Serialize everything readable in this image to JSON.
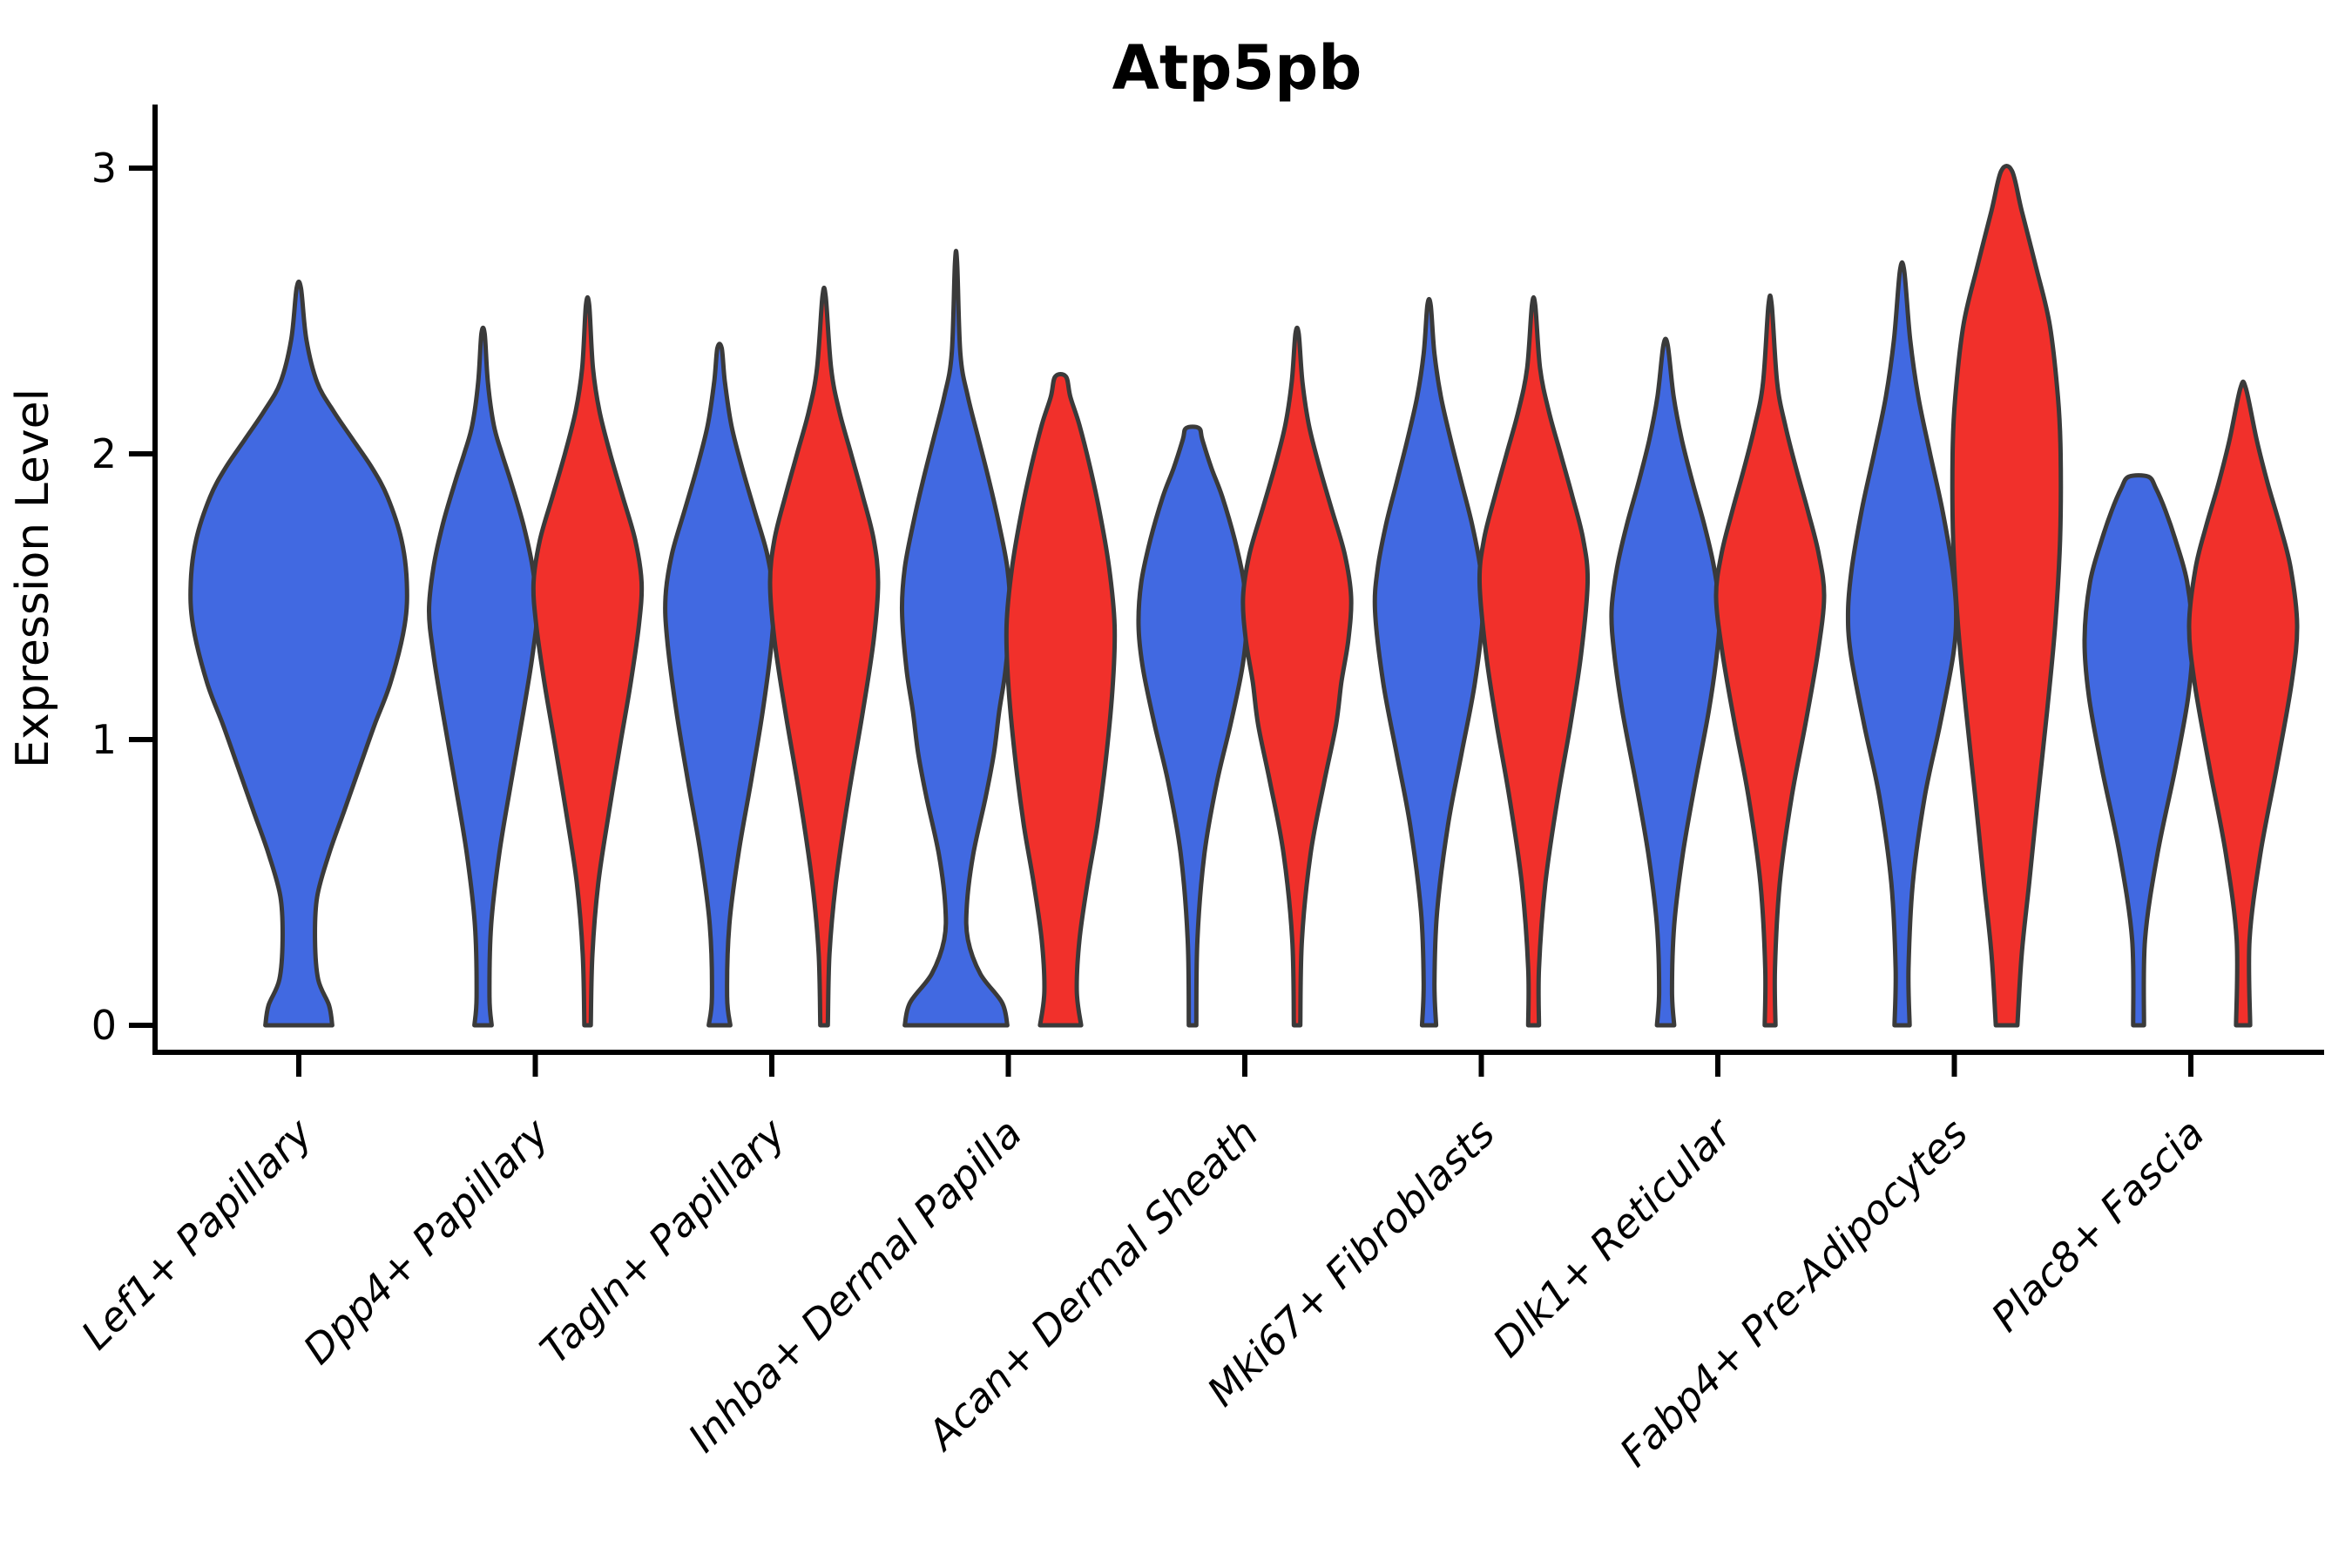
{
  "title": "Atp5pb",
  "ylabel": "Expression Level",
  "colors": {
    "blue": "#4169E1",
    "red": "#F1302B",
    "outline": "#3A3A3A",
    "axis": "#000000"
  },
  "chart_data": {
    "type": "violin",
    "split": true,
    "title": "Atp5pb",
    "xlabel": "",
    "ylabel": "Expression Level",
    "ylim": [
      0,
      3
    ],
    "yticks": [
      0,
      1,
      2,
      3
    ],
    "grid": false,
    "legend": "none",
    "categories": [
      "Lef1+ Papillary",
      "Dpp4+ Papillary",
      "Tagln+ Papillary",
      "Inhba+ Dermal Papilla",
      "Acan+ Dermal Sheath",
      "Mki67+ Fibroblasts",
      "Dlk1+ Reticular",
      "Fabp4+ Pre-Adipocytes",
      "Plac8+ Fascia"
    ],
    "groups": [
      "blue",
      "red"
    ],
    "violins": [
      {
        "category_index": 0,
        "group": "blue",
        "side": "full",
        "max_expression": 2.58,
        "profile": [
          [
            0,
            0.31
          ],
          [
            0.07,
            0.28
          ],
          [
            0.16,
            0.18
          ],
          [
            0.3,
            0.15
          ],
          [
            0.45,
            0.17
          ],
          [
            0.6,
            0.28
          ],
          [
            0.75,
            0.42
          ],
          [
            0.9,
            0.56
          ],
          [
            1.05,
            0.7
          ],
          [
            1.2,
            0.85
          ],
          [
            1.4,
            0.98
          ],
          [
            1.55,
            1.0
          ],
          [
            1.7,
            0.95
          ],
          [
            1.85,
            0.82
          ],
          [
            1.95,
            0.68
          ],
          [
            2.05,
            0.5
          ],
          [
            2.15,
            0.32
          ],
          [
            2.25,
            0.17
          ],
          [
            2.4,
            0.07
          ],
          [
            2.58,
            0.02
          ]
        ]
      },
      {
        "category_index": 1,
        "group": "blue",
        "side": "left",
        "max_expression": 2.42,
        "profile": [
          [
            0,
            0.16
          ],
          [
            0.1,
            0.12
          ],
          [
            0.35,
            0.15
          ],
          [
            0.6,
            0.3
          ],
          [
            0.85,
            0.52
          ],
          [
            1.1,
            0.75
          ],
          [
            1.3,
            0.92
          ],
          [
            1.45,
            1.0
          ],
          [
            1.6,
            0.92
          ],
          [
            1.75,
            0.75
          ],
          [
            1.9,
            0.52
          ],
          [
            2.0,
            0.35
          ],
          [
            2.1,
            0.2
          ],
          [
            2.25,
            0.09
          ],
          [
            2.42,
            0.03
          ]
        ]
      },
      {
        "category_index": 1,
        "group": "red",
        "side": "right",
        "max_expression": 2.52,
        "profile": [
          [
            0,
            0.06
          ],
          [
            0.25,
            0.09
          ],
          [
            0.5,
            0.2
          ],
          [
            0.75,
            0.4
          ],
          [
            1.0,
            0.62
          ],
          [
            1.2,
            0.8
          ],
          [
            1.4,
            0.95
          ],
          [
            1.55,
            1.0
          ],
          [
            1.7,
            0.88
          ],
          [
            1.85,
            0.65
          ],
          [
            2.0,
            0.42
          ],
          [
            2.15,
            0.22
          ],
          [
            2.3,
            0.1
          ],
          [
            2.52,
            0.03
          ]
        ]
      },
      {
        "category_index": 2,
        "group": "blue",
        "side": "left",
        "max_expression": 2.37,
        "profile": [
          [
            0,
            0.2
          ],
          [
            0.1,
            0.14
          ],
          [
            0.35,
            0.18
          ],
          [
            0.6,
            0.35
          ],
          [
            0.85,
            0.58
          ],
          [
            1.1,
            0.8
          ],
          [
            1.35,
            0.97
          ],
          [
            1.5,
            1.0
          ],
          [
            1.65,
            0.88
          ],
          [
            1.8,
            0.65
          ],
          [
            1.95,
            0.42
          ],
          [
            2.1,
            0.22
          ],
          [
            2.25,
            0.1
          ],
          [
            2.37,
            0.04
          ]
        ]
      },
      {
        "category_index": 2,
        "group": "red",
        "side": "right",
        "max_expression": 2.55,
        "profile": [
          [
            0,
            0.07
          ],
          [
            0.25,
            0.1
          ],
          [
            0.5,
            0.22
          ],
          [
            0.8,
            0.45
          ],
          [
            1.1,
            0.72
          ],
          [
            1.35,
            0.92
          ],
          [
            1.55,
            1.0
          ],
          [
            1.7,
            0.92
          ],
          [
            1.85,
            0.72
          ],
          [
            2.0,
            0.5
          ],
          [
            2.15,
            0.28
          ],
          [
            2.3,
            0.13
          ],
          [
            2.55,
            0.03
          ]
        ]
      },
      {
        "category_index": 3,
        "group": "blue",
        "side": "left",
        "max_expression": 2.67,
        "profile": [
          [
            0,
            0.95
          ],
          [
            0.08,
            0.85
          ],
          [
            0.18,
            0.45
          ],
          [
            0.3,
            0.22
          ],
          [
            0.42,
            0.2
          ],
          [
            0.6,
            0.32
          ],
          [
            0.8,
            0.55
          ],
          [
            0.95,
            0.7
          ],
          [
            1.1,
            0.8
          ],
          [
            1.25,
            0.92
          ],
          [
            1.45,
            1.0
          ],
          [
            1.6,
            0.95
          ],
          [
            1.75,
            0.8
          ],
          [
            1.9,
            0.62
          ],
          [
            2.05,
            0.42
          ],
          [
            2.2,
            0.22
          ],
          [
            2.35,
            0.08
          ],
          [
            2.67,
            0.02
          ]
        ]
      },
      {
        "category_index": 3,
        "group": "red",
        "side": "right",
        "max_expression": 2.27,
        "profile": [
          [
            0,
            0.38
          ],
          [
            0.12,
            0.3
          ],
          [
            0.3,
            0.35
          ],
          [
            0.5,
            0.5
          ],
          [
            0.7,
            0.68
          ],
          [
            0.95,
            0.85
          ],
          [
            1.2,
            0.97
          ],
          [
            1.4,
            1.0
          ],
          [
            1.6,
            0.9
          ],
          [
            1.8,
            0.72
          ],
          [
            1.95,
            0.55
          ],
          [
            2.1,
            0.35
          ],
          [
            2.2,
            0.18
          ],
          [
            2.27,
            0.1
          ]
        ]
      },
      {
        "category_index": 4,
        "group": "blue",
        "side": "left",
        "max_expression": 2.09,
        "profile": [
          [
            0,
            0.07
          ],
          [
            0.3,
            0.09
          ],
          [
            0.6,
            0.22
          ],
          [
            0.85,
            0.45
          ],
          [
            1.05,
            0.7
          ],
          [
            1.25,
            0.92
          ],
          [
            1.4,
            1.0
          ],
          [
            1.55,
            0.95
          ],
          [
            1.7,
            0.78
          ],
          [
            1.85,
            0.55
          ],
          [
            1.95,
            0.35
          ],
          [
            2.05,
            0.18
          ],
          [
            2.09,
            0.12
          ]
        ]
      },
      {
        "category_index": 4,
        "group": "red",
        "side": "right",
        "max_expression": 2.42,
        "profile": [
          [
            0,
            0.06
          ],
          [
            0.3,
            0.09
          ],
          [
            0.6,
            0.25
          ],
          [
            0.85,
            0.5
          ],
          [
            1.05,
            0.72
          ],
          [
            1.2,
            0.82
          ],
          [
            1.35,
            0.95
          ],
          [
            1.5,
            1.0
          ],
          [
            1.65,
            0.88
          ],
          [
            1.8,
            0.65
          ],
          [
            1.95,
            0.42
          ],
          [
            2.1,
            0.22
          ],
          [
            2.25,
            0.1
          ],
          [
            2.42,
            0.03
          ]
        ]
      },
      {
        "category_index": 5,
        "group": "blue",
        "side": "left",
        "max_expression": 2.52,
        "profile": [
          [
            0,
            0.13
          ],
          [
            0.15,
            0.1
          ],
          [
            0.4,
            0.15
          ],
          [
            0.7,
            0.35
          ],
          [
            0.95,
            0.6
          ],
          [
            1.2,
            0.85
          ],
          [
            1.45,
            1.0
          ],
          [
            1.6,
            0.95
          ],
          [
            1.75,
            0.8
          ],
          [
            1.9,
            0.6
          ],
          [
            2.05,
            0.4
          ],
          [
            2.2,
            0.22
          ],
          [
            2.35,
            0.1
          ],
          [
            2.52,
            0.03
          ]
        ]
      },
      {
        "category_index": 5,
        "group": "red",
        "side": "right",
        "max_expression": 2.52,
        "profile": [
          [
            0,
            0.1
          ],
          [
            0.2,
            0.1
          ],
          [
            0.5,
            0.22
          ],
          [
            0.8,
            0.45
          ],
          [
            1.05,
            0.68
          ],
          [
            1.3,
            0.88
          ],
          [
            1.55,
            1.0
          ],
          [
            1.7,
            0.92
          ],
          [
            1.85,
            0.72
          ],
          [
            2.0,
            0.5
          ],
          [
            2.15,
            0.28
          ],
          [
            2.3,
            0.12
          ],
          [
            2.52,
            0.03
          ]
        ]
      },
      {
        "category_index": 6,
        "group": "blue",
        "side": "left",
        "max_expression": 2.38,
        "profile": [
          [
            0,
            0.16
          ],
          [
            0.12,
            0.12
          ],
          [
            0.35,
            0.16
          ],
          [
            0.6,
            0.32
          ],
          [
            0.85,
            0.55
          ],
          [
            1.1,
            0.8
          ],
          [
            1.3,
            0.95
          ],
          [
            1.45,
            1.0
          ],
          [
            1.6,
            0.9
          ],
          [
            1.75,
            0.72
          ],
          [
            1.9,
            0.5
          ],
          [
            2.05,
            0.3
          ],
          [
            2.2,
            0.15
          ],
          [
            2.38,
            0.04
          ]
        ]
      },
      {
        "category_index": 6,
        "group": "red",
        "side": "right",
        "max_expression": 2.52,
        "profile": [
          [
            0,
            0.1
          ],
          [
            0.2,
            0.09
          ],
          [
            0.5,
            0.18
          ],
          [
            0.8,
            0.4
          ],
          [
            1.05,
            0.65
          ],
          [
            1.3,
            0.88
          ],
          [
            1.5,
            1.0
          ],
          [
            1.65,
            0.9
          ],
          [
            1.8,
            0.7
          ],
          [
            1.95,
            0.48
          ],
          [
            2.1,
            0.28
          ],
          [
            2.25,
            0.13
          ],
          [
            2.52,
            0.03
          ]
        ]
      },
      {
        "category_index": 7,
        "group": "blue",
        "side": "left",
        "max_expression": 2.64,
        "profile": [
          [
            0,
            0.14
          ],
          [
            0.2,
            0.12
          ],
          [
            0.5,
            0.2
          ],
          [
            0.8,
            0.42
          ],
          [
            1.05,
            0.7
          ],
          [
            1.3,
            0.95
          ],
          [
            1.45,
            1.0
          ],
          [
            1.6,
            0.93
          ],
          [
            1.8,
            0.75
          ],
          [
            2.0,
            0.52
          ],
          [
            2.2,
            0.3
          ],
          [
            2.4,
            0.15
          ],
          [
            2.64,
            0.04
          ]
        ]
      },
      {
        "category_index": 7,
        "group": "red",
        "side": "right",
        "max_expression": 2.99,
        "profile": [
          [
            0,
            0.2
          ],
          [
            0.25,
            0.28
          ],
          [
            0.5,
            0.42
          ],
          [
            0.8,
            0.58
          ],
          [
            1.1,
            0.75
          ],
          [
            1.4,
            0.9
          ],
          [
            1.7,
            0.99
          ],
          [
            2.0,
            1.0
          ],
          [
            2.2,
            0.95
          ],
          [
            2.45,
            0.8
          ],
          [
            2.65,
            0.55
          ],
          [
            2.85,
            0.28
          ],
          [
            2.99,
            0.1
          ]
        ]
      },
      {
        "category_index": 8,
        "group": "blue",
        "side": "left",
        "max_expression": 1.92,
        "profile": [
          [
            0,
            0.1
          ],
          [
            0.3,
            0.12
          ],
          [
            0.6,
            0.35
          ],
          [
            0.9,
            0.68
          ],
          [
            1.15,
            0.92
          ],
          [
            1.35,
            1.0
          ],
          [
            1.55,
            0.9
          ],
          [
            1.7,
            0.68
          ],
          [
            1.8,
            0.5
          ],
          [
            1.88,
            0.32
          ],
          [
            1.92,
            0.18
          ]
        ]
      },
      {
        "category_index": 8,
        "group": "red",
        "side": "right",
        "max_expression": 2.23,
        "profile": [
          [
            0,
            0.13
          ],
          [
            0.3,
            0.12
          ],
          [
            0.6,
            0.32
          ],
          [
            0.9,
            0.62
          ],
          [
            1.2,
            0.9
          ],
          [
            1.4,
            1.0
          ],
          [
            1.6,
            0.88
          ],
          [
            1.75,
            0.68
          ],
          [
            1.9,
            0.45
          ],
          [
            2.05,
            0.25
          ],
          [
            2.23,
            0.05
          ]
        ]
      }
    ]
  }
}
